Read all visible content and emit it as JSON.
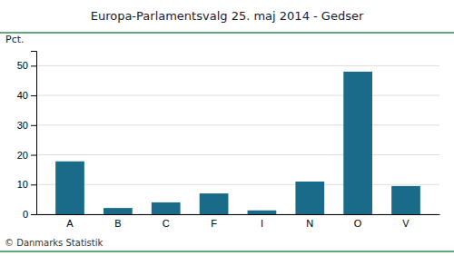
{
  "chart_data": {
    "type": "bar",
    "title": "Europa-Parlamentsvalg 25. maj 2014 - Gedser",
    "ylabel": "Pct.",
    "annotations": [
      "© Danmarks Statistik"
    ],
    "categories": [
      "A",
      "B",
      "C",
      "F",
      "I",
      "N",
      "O",
      "V"
    ],
    "values": [
      17.8,
      2.1,
      4.0,
      7.0,
      1.3,
      11.0,
      48.0,
      9.5
    ],
    "color": "#1a6b8a",
    "ylim": [
      0,
      55
    ],
    "yticks": [
      0,
      10,
      20,
      30,
      40,
      50
    ],
    "grid": true
  }
}
